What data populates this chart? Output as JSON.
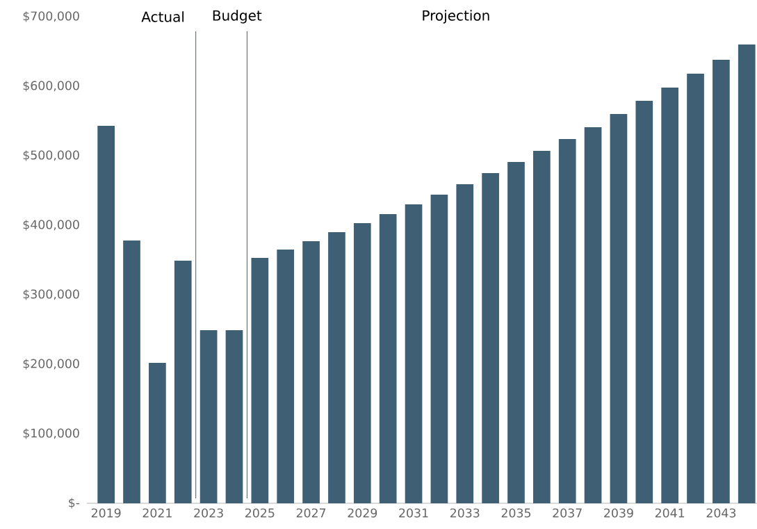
{
  "chart_data": {
    "type": "bar",
    "color": "#3f5f75",
    "categories": [
      "2019",
      null,
      "2021",
      null,
      "2023",
      null,
      "2025",
      null,
      "2027",
      null,
      "2029",
      null,
      "2031",
      null,
      "2033",
      null,
      "2035",
      null,
      "2037",
      null,
      "2039",
      null,
      "2041",
      null,
      "2043",
      null
    ],
    "values": [
      543000,
      378000,
      202000,
      349000,
      249000,
      249000,
      353000,
      365000,
      377000,
      390000,
      403000,
      416000,
      430000,
      444000,
      459000,
      475000,
      491000,
      507000,
      524000,
      541000,
      560000,
      579000,
      598000,
      618000,
      638000,
      660000
    ],
    "ylim": [
      0,
      700000
    ],
    "yticks": [
      {
        "value": 0,
        "label": "$-"
      },
      {
        "value": 100000,
        "label": "$100,000"
      },
      {
        "value": 200000,
        "label": "$200,000"
      },
      {
        "value": 300000,
        "label": "$300,000"
      },
      {
        "value": 400000,
        "label": "$400,000"
      },
      {
        "value": 500000,
        "label": "$500,000"
      },
      {
        "value": 600000,
        "label": "$600,000"
      },
      {
        "value": 700000,
        "label": "$700,000"
      }
    ],
    "annotations": [
      "Actual",
      "Budget",
      "Projection"
    ]
  }
}
